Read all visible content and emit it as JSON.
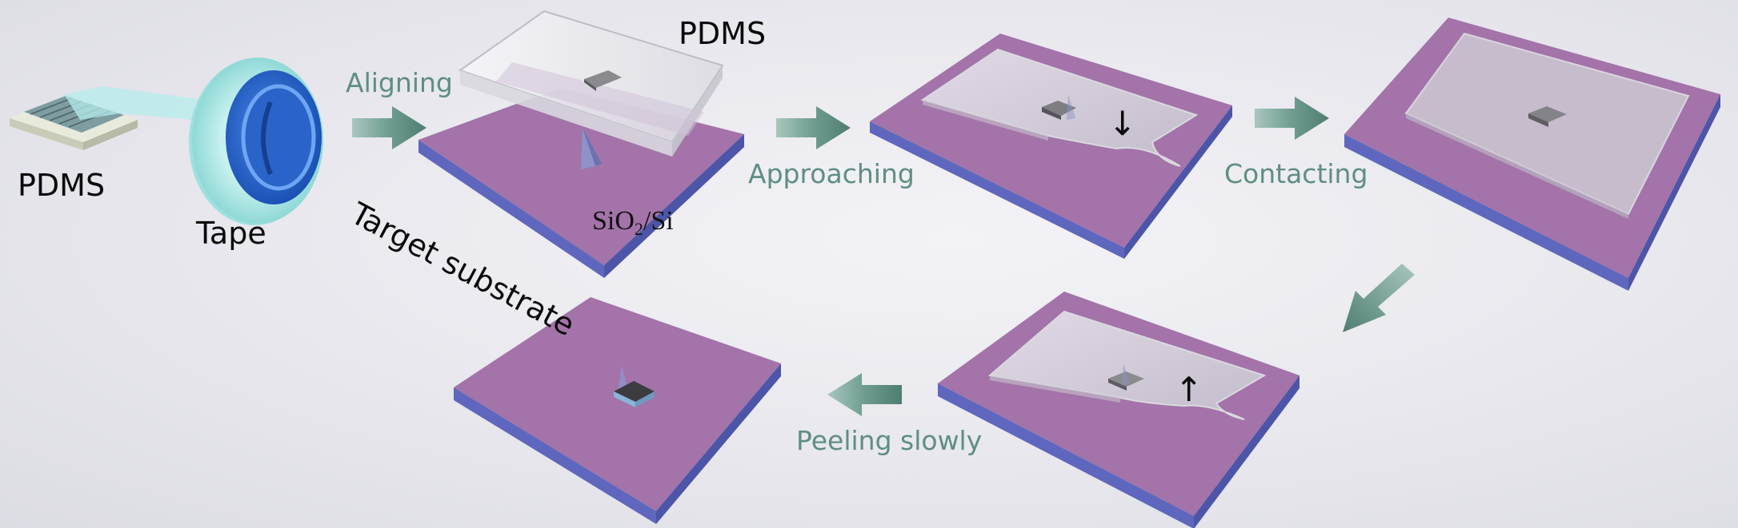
{
  "labels": {
    "pdms_left": "PDMS",
    "tape": "Tape",
    "pdms_top": "PDMS",
    "target_substrate": "Target substrate",
    "substrate_prefix": "SiO",
    "substrate_sub": "2",
    "substrate_suffix": "/Si"
  },
  "steps": {
    "aligning": "Aligning",
    "approaching": "Approaching",
    "contacting": "Contacting",
    "peeling": "Peeling slowly"
  },
  "motion_arrows": {
    "down": "↓",
    "up": "↑"
  },
  "colors": {
    "substrate_top": "#a373a9",
    "substrate_side": "#5e67bd",
    "flow_arrow": "#6f9c8f",
    "label_text": "#5f8e82",
    "tape": "#9fe0e0",
    "tape_core": "#2f6fd1"
  }
}
